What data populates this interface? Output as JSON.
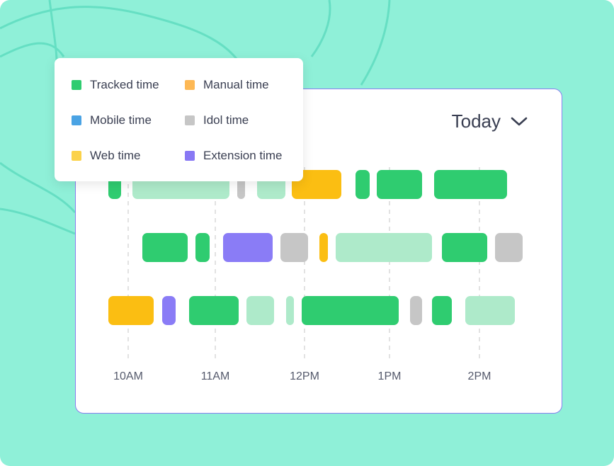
{
  "colors": {
    "background": "#8ff0d8",
    "tracked": "#2fcc70",
    "tracked_light": "#aeeaca",
    "manual": "#fdb855",
    "mobile": "#4aa3e4",
    "idle": "#c6c6c6",
    "web": "#fbd24a",
    "extension": "#8878f4",
    "extension_bar": "#8a7cf6",
    "manual_bar": "#fbbe12",
    "border": "#8a7ff0"
  },
  "legend": {
    "items": [
      {
        "label": "Tracked time",
        "icon": "tracked-time-swatch"
      },
      {
        "label": "Manual time",
        "icon": "manual-time-swatch"
      },
      {
        "label": "Mobile time",
        "icon": "mobile-time-swatch"
      },
      {
        "label": "Idol time",
        "icon": "idle-time-swatch"
      },
      {
        "label": "Web time",
        "icon": "web-time-swatch"
      },
      {
        "label": "Extension time",
        "icon": "extension-time-swatch"
      }
    ]
  },
  "period_selector": {
    "label": "Today",
    "icon": "chevron-down-icon"
  },
  "timeline": {
    "ticks": [
      "10AM",
      "11AM",
      "12PM",
      "1PM",
      "2PM"
    ]
  }
}
